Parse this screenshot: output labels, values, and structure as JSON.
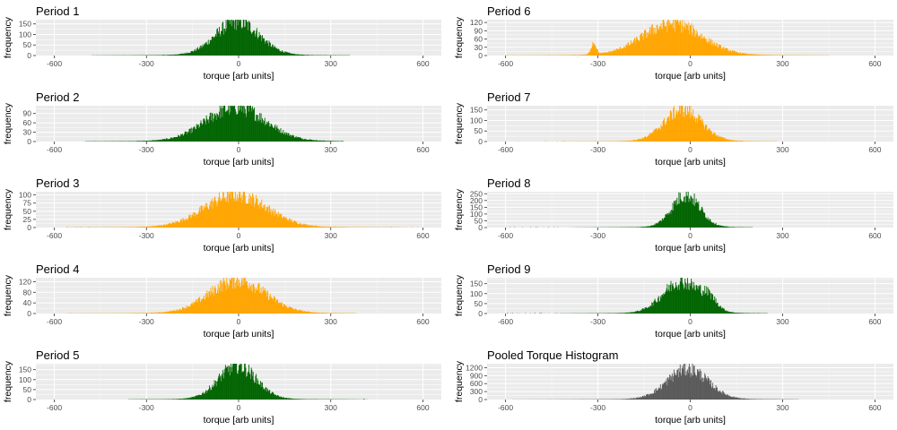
{
  "x_axis_label": "torque [arb units]",
  "y_axis_label": "frequency",
  "chart_data": [
    {
      "type": "bar",
      "title": "Period 1",
      "color": "#006400",
      "xlim": [
        -660,
        660
      ],
      "ylim": [
        0,
        170
      ],
      "x_ticks": [
        -600,
        -300,
        0,
        300,
        600
      ],
      "y_ticks": [
        0,
        50,
        100,
        150
      ],
      "center": -5,
      "width": 70,
      "peak": 160,
      "span": [
        -480,
        360
      ],
      "bump": null
    },
    {
      "type": "bar",
      "title": "Period 2",
      "color": "#006400",
      "xlim": [
        -660,
        660
      ],
      "ylim": [
        0,
        115
      ],
      "x_ticks": [
        -600,
        -300,
        0,
        300,
        600
      ],
      "y_ticks": [
        0,
        30,
        60,
        90
      ],
      "center": -10,
      "width": 95,
      "peak": 110,
      "span": [
        -500,
        340
      ],
      "bump": null
    },
    {
      "type": "bar",
      "title": "Period 3",
      "color": "#FFA500",
      "xlim": [
        -660,
        660
      ],
      "ylim": [
        0,
        110
      ],
      "x_ticks": [
        -600,
        -300,
        0,
        300,
        600
      ],
      "y_ticks": [
        0,
        25,
        50,
        75,
        100
      ],
      "center": -10,
      "width": 100,
      "peak": 100,
      "span": [
        -560,
        600
      ],
      "bump": null
    },
    {
      "type": "bar",
      "title": "Period 4",
      "color": "#FFA500",
      "xlim": [
        -660,
        660
      ],
      "ylim": [
        0,
        135
      ],
      "x_ticks": [
        -600,
        -300,
        0,
        300,
        600
      ],
      "y_ticks": [
        0,
        40,
        80,
        120
      ],
      "center": -5,
      "width": 90,
      "peak": 125,
      "span": [
        -560,
        380
      ],
      "bump": null
    },
    {
      "type": "bar",
      "title": "Period 5",
      "color": "#006400",
      "xlim": [
        -660,
        660
      ],
      "ylim": [
        0,
        180
      ],
      "x_ticks": [
        -600,
        -300,
        0,
        300,
        600
      ],
      "y_ticks": [
        0,
        50,
        100,
        150
      ],
      "center": -5,
      "width": 60,
      "peak": 170,
      "span": [
        -360,
        420
      ],
      "bump": null
    },
    {
      "type": "bar",
      "title": "Period 6",
      "color": "#FFA500",
      "xlim": [
        -660,
        660
      ],
      "ylim": [
        0,
        130
      ],
      "x_ticks": [
        -600,
        -300,
        0,
        300,
        600
      ],
      "y_ticks": [
        0,
        30,
        60,
        90,
        120
      ],
      "center": -60,
      "width": 95,
      "peak": 115,
      "span": [
        -600,
        450
      ],
      "bump": {
        "center": -315,
        "width": 8,
        "peak": 45
      }
    },
    {
      "type": "bar",
      "title": "Period 7",
      "color": "#FFA500",
      "xlim": [
        -660,
        660
      ],
      "ylim": [
        0,
        170
      ],
      "x_ticks": [
        -600,
        -300,
        0,
        300,
        600
      ],
      "y_ticks": [
        0,
        50,
        100,
        150
      ],
      "center": -25,
      "width": 60,
      "peak": 150,
      "span": [
        -600,
        280
      ],
      "bump": null
    },
    {
      "type": "bar",
      "title": "Period 8",
      "color": "#006400",
      "xlim": [
        -660,
        660
      ],
      "ylim": [
        0,
        265
      ],
      "x_ticks": [
        -600,
        -300,
        0,
        300,
        600
      ],
      "y_ticks": [
        0,
        50,
        100,
        150,
        200,
        250
      ],
      "center": -15,
      "width": 45,
      "peak": 240,
      "span": [
        -600,
        200
      ],
      "bump": null
    },
    {
      "type": "bar",
      "title": "Period 9",
      "color": "#006400",
      "xlim": [
        -660,
        660
      ],
      "ylim": [
        0,
        180
      ],
      "x_ticks": [
        -600,
        -300,
        0,
        300,
        600
      ],
      "y_ticks": [
        0,
        50,
        100,
        150
      ],
      "center": -30,
      "width": 60,
      "peak": 160,
      "span": [
        -600,
        250
      ],
      "bump": {
        "center": 60,
        "width": 25,
        "peak": 50
      }
    },
    {
      "type": "bar",
      "title": "Pooled Torque Histogram",
      "color": "#595959",
      "xlim": [
        -660,
        660
      ],
      "ylim": [
        0,
        1350
      ],
      "x_ticks": [
        -600,
        -300,
        0,
        300,
        600
      ],
      "y_ticks": [
        0,
        300,
        600,
        900,
        1200
      ],
      "center": -10,
      "width": 65,
      "peak": 1150,
      "span": [
        -580,
        350
      ],
      "bump": null
    }
  ]
}
